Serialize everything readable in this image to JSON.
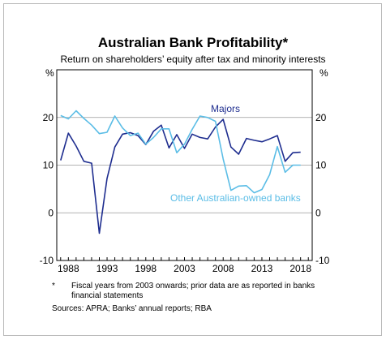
{
  "chart_data": {
    "type": "line",
    "title": "Australian Bank Profitability*",
    "subtitle": "Return on shareholders’ equity after tax and minority interests",
    "y_unit_left": "%",
    "y_unit_right": "%",
    "ylim": [
      -10,
      30
    ],
    "yticks": [
      -10,
      0,
      10,
      20
    ],
    "xlim": [
      1986.5,
      2019.5
    ],
    "xticks": [
      1988,
      1993,
      1998,
      2003,
      2008,
      2013,
      2018
    ],
    "grid": "horizontal-at-10",
    "series": [
      {
        "name": "Majors",
        "color": "#1e2d8f",
        "x": [
          1987,
          1988,
          1989,
          1990,
          1991,
          1992,
          1993,
          1994,
          1995,
          1996,
          1997,
          1998,
          1999,
          2000,
          2001,
          2002,
          2003,
          2004,
          2005,
          2006,
          2007,
          2008,
          2009,
          2010,
          2011,
          2012,
          2013,
          2014,
          2015,
          2016,
          2017,
          2018
        ],
        "values": [
          11,
          16.7,
          14,
          10.8,
          10.4,
          -4.3,
          7.2,
          13.8,
          16.5,
          16.8,
          16.2,
          14.3,
          17.1,
          18.4,
          13.6,
          16.4,
          13.5,
          16.5,
          15.8,
          15.5,
          18,
          19.6,
          13.8,
          12.3,
          15.6,
          15.2,
          14.9,
          15.5,
          16.2,
          10.8,
          12.6,
          12.7
        ]
      },
      {
        "name": "Other Australian-owned banks",
        "color": "#5bbde6",
        "x": [
          1987,
          1988,
          1989,
          1990,
          1991,
          1992,
          1993,
          1994,
          1995,
          1996,
          1997,
          1998,
          1999,
          2000,
          2001,
          2002,
          2003,
          2004,
          2005,
          2006,
          2007,
          2008,
          2009,
          2010,
          2011,
          2012,
          2013,
          2014,
          2015,
          2016,
          2017,
          2018
        ],
        "values": [
          20.4,
          19.7,
          21.4,
          19.8,
          18.4,
          16.6,
          16.9,
          20.3,
          17.8,
          16.2,
          16.7,
          14.4,
          15.8,
          17.6,
          17.6,
          12.6,
          14.4,
          17.5,
          20.3,
          20,
          19.2,
          11.3,
          4.7,
          5.6,
          5.7,
          4.2,
          4.9,
          8,
          13.9,
          8.5,
          10,
          10
        ]
      }
    ]
  },
  "footnote": {
    "mark": "*",
    "text": "Fiscal years from 2003 onwards; prior data are as reported in banks financial statements"
  },
  "sources": "Sources: APRA; Banks’ annual reports; RBA"
}
